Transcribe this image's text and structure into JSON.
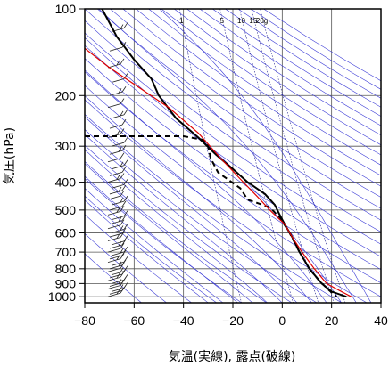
{
  "chart_data": {
    "type": "line",
    "title": "",
    "xlabel": "気温(実線), 露点(破線)",
    "ylabel": "気圧(hPa)",
    "xlim": [
      -80,
      40
    ],
    "ylim": [
      1050,
      100
    ],
    "yscale": "log",
    "x_ticks": [
      "−80",
      "−60",
      "−40",
      "−20",
      "0",
      "20",
      "40"
    ],
    "y_ticks": [
      "100",
      "200",
      "300",
      "400",
      "500",
      "600",
      "700",
      "800",
      "900",
      "1000"
    ],
    "grid": true,
    "mixing_ratio_labels": [
      "1",
      "5",
      "10",
      "15",
      "20g"
    ],
    "mixing_ratio_values": [
      1,
      5,
      10,
      15,
      20
    ],
    "colors": {
      "temperature": "#000000",
      "dewpoint": "#000000",
      "parcel": "#e00000",
      "adiabats": "#3a3ad6",
      "grid": "#555555",
      "mixing_ratio": "#1a1a8c"
    },
    "series": [
      {
        "style": "solid",
        "color": "black",
        "points": [
          [
            -73,
            100
          ],
          [
            -67,
            125
          ],
          [
            -60,
            150
          ],
          [
            -53,
            175
          ],
          [
            -50,
            200
          ],
          [
            -43,
            240
          ],
          [
            -34,
            280
          ],
          [
            -27,
            320
          ],
          [
            -20,
            360
          ],
          [
            -14,
            400
          ],
          [
            -7,
            440
          ],
          [
            -3,
            480
          ],
          [
            -1,
            520
          ],
          [
            1,
            560
          ],
          [
            4,
            620
          ],
          [
            7,
            700
          ],
          [
            11,
            800
          ],
          [
            16,
            900
          ],
          [
            20,
            960
          ],
          [
            26,
            1000
          ]
        ]
      },
      {
        "style": "dashed",
        "color": "black",
        "points": [
          [
            -80,
            277
          ],
          [
            -40,
            277
          ],
          [
            -32,
            285
          ],
          [
            -30,
            300
          ],
          [
            -29,
            330
          ],
          [
            -26,
            370
          ],
          [
            -17,
            420
          ],
          [
            -14,
            460
          ],
          [
            -5,
            490
          ],
          [
            -1,
            530
          ],
          [
            3,
            600
          ],
          [
            7,
            700
          ],
          [
            11,
            800
          ],
          [
            15,
            880
          ],
          [
            19,
            950
          ],
          [
            22,
            1000
          ]
        ]
      },
      {
        "style": "solid",
        "color": "red",
        "points": [
          [
            -81,
            135
          ],
          [
            -70,
            160
          ],
          [
            -57,
            190
          ],
          [
            -46,
            220
          ],
          [
            -34,
            270
          ],
          [
            -25,
            330
          ],
          [
            -17,
            390
          ],
          [
            -10,
            450
          ],
          [
            -5,
            500
          ],
          [
            1,
            560
          ],
          [
            4,
            620
          ],
          [
            8,
            700
          ],
          [
            13,
            800
          ],
          [
            18,
            900
          ],
          [
            25,
            970
          ],
          [
            28,
            1000
          ]
        ]
      }
    ]
  }
}
